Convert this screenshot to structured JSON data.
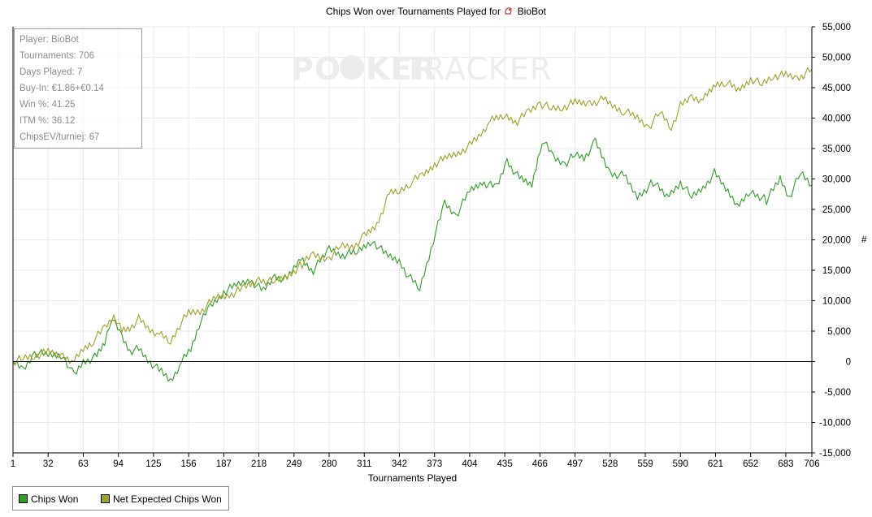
{
  "title_prefix": "Chips Won over Tournaments Played for",
  "player_name": "BioBot",
  "watermark": {
    "part1": "PO",
    "part2": "KER",
    "part3": "TRACKER"
  },
  "stats": [
    "Player: BioBot",
    "Tournaments: 706",
    "Days Played: 7",
    "Buy-In: €1.86+€0.14",
    "Win %: 41.25",
    "ITM %: 36.12",
    "ChipsEV/turniej: 67"
  ],
  "legend": {
    "items": [
      {
        "label": "Chips Won",
        "color": "#2f9e26"
      },
      {
        "label": "Net Expected Chips Won",
        "color": "#a0a02a"
      }
    ]
  },
  "y_axis_unit": "#",
  "chart_data": {
    "type": "line",
    "xlabel": "Tournaments Played",
    "ylabel": "",
    "x_ticks": [
      1,
      32,
      63,
      94,
      125,
      156,
      187,
      218,
      249,
      280,
      311,
      342,
      373,
      404,
      435,
      466,
      497,
      528,
      559,
      590,
      621,
      652,
      683,
      706
    ],
    "y_ticks": [
      -15000,
      -10000,
      -5000,
      0,
      5000,
      10000,
      15000,
      20000,
      25000,
      30000,
      35000,
      40000,
      45000,
      50000,
      55000
    ],
    "y_tick_labels": [
      "-15,000",
      "-10,000",
      "-5,000",
      "0",
      "5,000",
      "10,000",
      "15,000",
      "20,000",
      "25,000",
      "30,000",
      "35,000",
      "40,000",
      "45,000",
      "50,000",
      "55,000"
    ],
    "xlim": [
      1,
      706
    ],
    "ylim": [
      -15000,
      55000
    ],
    "grid": true,
    "legend_position": "bottom-left",
    "series": [
      {
        "name": "Chips Won",
        "color": "#2f9e26",
        "points": [
          [
            1,
            0
          ],
          [
            10,
            -1500
          ],
          [
            20,
            1500
          ],
          [
            32,
            1000
          ],
          [
            45,
            1200
          ],
          [
            55,
            -2500
          ],
          [
            63,
            0
          ],
          [
            75,
            800
          ],
          [
            82,
            3000
          ],
          [
            88,
            7500
          ],
          [
            97,
            4000
          ],
          [
            104,
            1800
          ],
          [
            112,
            2000
          ],
          [
            120,
            300
          ],
          [
            132,
            -1800
          ],
          [
            140,
            -3200
          ],
          [
            150,
            0
          ],
          [
            158,
            2000
          ],
          [
            165,
            6000
          ],
          [
            175,
            9000
          ],
          [
            187,
            11500
          ],
          [
            198,
            12500
          ],
          [
            210,
            13500
          ],
          [
            222,
            11500
          ],
          [
            232,
            14000
          ],
          [
            243,
            13500
          ],
          [
            255,
            17000
          ],
          [
            266,
            15000
          ],
          [
            280,
            18500
          ],
          [
            292,
            17500
          ],
          [
            305,
            18000
          ],
          [
            318,
            20000
          ],
          [
            330,
            17500
          ],
          [
            342,
            16500
          ],
          [
            350,
            14000
          ],
          [
            360,
            12000
          ],
          [
            372,
            20000
          ],
          [
            382,
            26000
          ],
          [
            392,
            24000
          ],
          [
            404,
            28000
          ],
          [
            415,
            29500
          ],
          [
            428,
            28500
          ],
          [
            437,
            33000
          ],
          [
            448,
            30000
          ],
          [
            459,
            29000
          ],
          [
            468,
            36500
          ],
          [
            478,
            33500
          ],
          [
            488,
            32500
          ],
          [
            497,
            34000
          ],
          [
            505,
            33500
          ],
          [
            515,
            36000
          ],
          [
            528,
            31000
          ],
          [
            540,
            30500
          ],
          [
            552,
            27000
          ],
          [
            566,
            29500
          ],
          [
            578,
            27000
          ],
          [
            590,
            29500
          ],
          [
            600,
            27000
          ],
          [
            612,
            29000
          ],
          [
            620,
            31000
          ],
          [
            632,
            28000
          ],
          [
            642,
            25500
          ],
          [
            652,
            28000
          ],
          [
            666,
            26500
          ],
          [
            678,
            30000
          ],
          [
            686,
            27000
          ],
          [
            696,
            31000
          ],
          [
            706,
            29000
          ]
        ]
      },
      {
        "name": "Net Expected Chips Won",
        "color": "#a0a02a",
        "points": [
          [
            1,
            0
          ],
          [
            10,
            500
          ],
          [
            20,
            1000
          ],
          [
            32,
            1500
          ],
          [
            45,
            1000
          ],
          [
            55,
            0
          ],
          [
            63,
            2000
          ],
          [
            72,
            3500
          ],
          [
            82,
            5500
          ],
          [
            90,
            7500
          ],
          [
            97,
            5000
          ],
          [
            104,
            5500
          ],
          [
            112,
            7000
          ],
          [
            120,
            5500
          ],
          [
            130,
            4500
          ],
          [
            140,
            3200
          ],
          [
            148,
            6000
          ],
          [
            156,
            8000
          ],
          [
            168,
            8500
          ],
          [
            180,
            10500
          ],
          [
            192,
            11000
          ],
          [
            205,
            12000
          ],
          [
            218,
            13500
          ],
          [
            232,
            13000
          ],
          [
            243,
            14000
          ],
          [
            256,
            16000
          ],
          [
            266,
            17500
          ],
          [
            280,
            17000
          ],
          [
            290,
            19000
          ],
          [
            302,
            19000
          ],
          [
            311,
            20500
          ],
          [
            322,
            22500
          ],
          [
            333,
            27500
          ],
          [
            342,
            28000
          ],
          [
            352,
            29500
          ],
          [
            362,
            30500
          ],
          [
            373,
            32500
          ],
          [
            384,
            33500
          ],
          [
            396,
            34500
          ],
          [
            404,
            35500
          ],
          [
            412,
            37000
          ],
          [
            422,
            39500
          ],
          [
            435,
            40500
          ],
          [
            446,
            39500
          ],
          [
            456,
            41000
          ],
          [
            466,
            42500
          ],
          [
            476,
            41500
          ],
          [
            486,
            41800
          ],
          [
            497,
            42500
          ],
          [
            510,
            42500
          ],
          [
            522,
            43000
          ],
          [
            530,
            42000
          ],
          [
            540,
            41200
          ],
          [
            552,
            40000
          ],
          [
            562,
            38500
          ],
          [
            572,
            41000
          ],
          [
            582,
            38500
          ],
          [
            590,
            42000
          ],
          [
            600,
            43500
          ],
          [
            610,
            43000
          ],
          [
            621,
            45500
          ],
          [
            630,
            46000
          ],
          [
            641,
            44500
          ],
          [
            652,
            46500
          ],
          [
            662,
            45500
          ],
          [
            672,
            47000
          ],
          [
            683,
            47000
          ],
          [
            693,
            46500
          ],
          [
            706,
            48000
          ]
        ]
      }
    ]
  }
}
